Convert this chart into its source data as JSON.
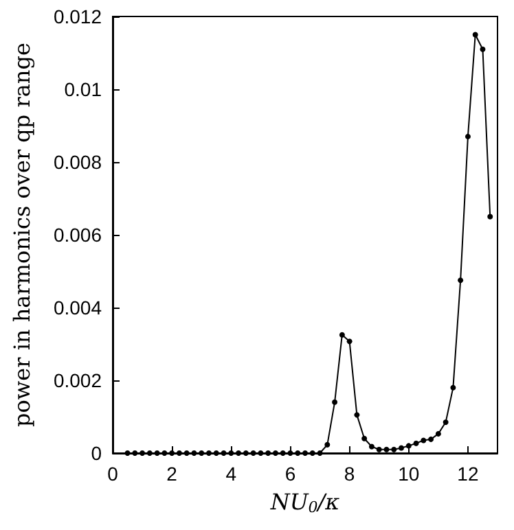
{
  "chart_data": {
    "type": "line",
    "xlabel": "NU$_{0}$/κ",
    "ylabel": "power in harmonics over qp range",
    "x": [
      0.5,
      0.75,
      1,
      1.25,
      1.5,
      1.75,
      2,
      2.25,
      2.5,
      2.75,
      3,
      3.25,
      3.5,
      3.75,
      4,
      4.25,
      4.5,
      4.75,
      5,
      5.25,
      5.5,
      5.75,
      6,
      6.25,
      6.5,
      6.75,
      7,
      7.25,
      7.5,
      7.75,
      8,
      8.25,
      8.5,
      8.75,
      9,
      9.25,
      9.5,
      9.75,
      10,
      10.25,
      10.5,
      10.75,
      11,
      11.25,
      11.5,
      11.75,
      12,
      12.25,
      12.5,
      12.75
    ],
    "series": [
      {
        "color": "#000000",
        "values": [
          0,
          0,
          0,
          0,
          0,
          0,
          0,
          0,
          0,
          0,
          0,
          0,
          0,
          0,
          0,
          0,
          0,
          0,
          0,
          0,
          0,
          0,
          0,
          0,
          0,
          0,
          0,
          0.00023,
          0.0014,
          0.00325,
          0.00307,
          0.00105,
          0.0004,
          0.00018,
          0.0001,
          0.0001,
          0.0001,
          0.00014,
          0.0002,
          0.00027,
          0.00035,
          0.00038,
          0.00053,
          0.00085,
          0.0018,
          0.00475,
          0.0087,
          0.0115,
          0.0111,
          0.0065
        ]
      }
    ],
    "xlim": [
      0,
      13
    ],
    "xticks": [
      0,
      2,
      4,
      6,
      8,
      10,
      12
    ],
    "ylim": [
      0,
      0.012
    ],
    "yticks": [
      0,
      0.002,
      0.004,
      0.006,
      0.008,
      0.01,
      0.012
    ],
    "grid": false,
    "marker": "circle",
    "line_style": "solid"
  }
}
